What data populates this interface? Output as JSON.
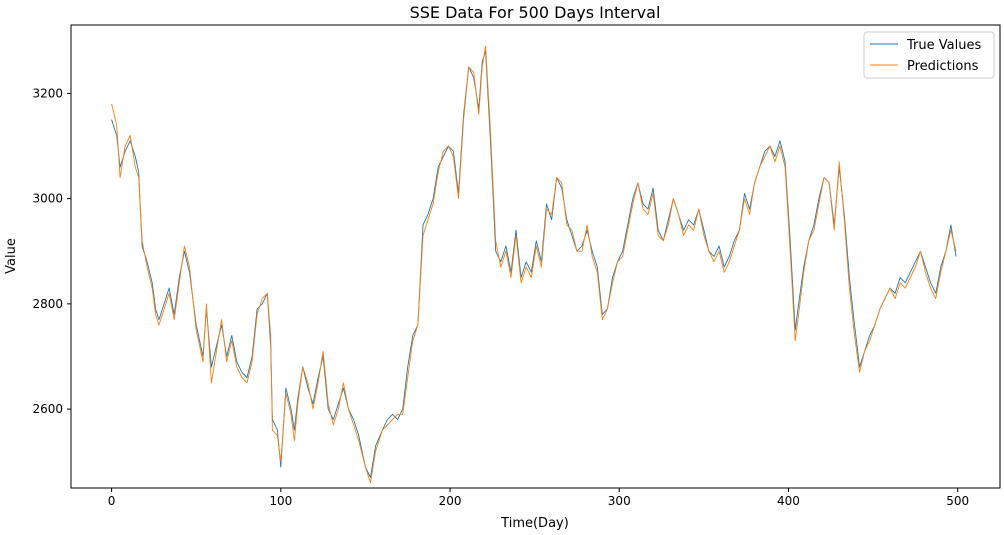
{
  "chart_data": {
    "type": "line",
    "title": "SSE Data For 500 Days Interval",
    "xlabel": "Time(Day)",
    "ylabel": "Value",
    "xlim": [
      -24,
      525
    ],
    "ylim": [
      2450,
      3330
    ],
    "xticks": [
      0,
      100,
      200,
      300,
      400,
      500
    ],
    "yticks": [
      2600,
      2800,
      3000,
      3200
    ],
    "grid": false,
    "legend_position": "top-right",
    "series": [
      {
        "name": "True Values",
        "color": "#1f77b4",
        "x": [
          0,
          3,
          5,
          8,
          11,
          14,
          16,
          18,
          21,
          24,
          26,
          28,
          31,
          34,
          37,
          40,
          43,
          46,
          50,
          54,
          56,
          59,
          62,
          65,
          68,
          71,
          74,
          77,
          80,
          83,
          86,
          89,
          92,
          94,
          95,
          98,
          100,
          103,
          106,
          108,
          110,
          113,
          116,
          119,
          122,
          125,
          128,
          131,
          134,
          137,
          140,
          143,
          146,
          150,
          153,
          156,
          160,
          163,
          166,
          169,
          172,
          175,
          178,
          181,
          184,
          187,
          190,
          193,
          196,
          199,
          202,
          205,
          208,
          211,
          214,
          217,
          219,
          221,
          224,
          227,
          230,
          233,
          236,
          239,
          242,
          245,
          248,
          251,
          254,
          257,
          260,
          263,
          266,
          269,
          272,
          275,
          278,
          281,
          284,
          287,
          290,
          293,
          296,
          299,
          302,
          305,
          308,
          311,
          314,
          317,
          320,
          323,
          326,
          329,
          332,
          335,
          338,
          341,
          344,
          347,
          350,
          353,
          356,
          359,
          362,
          365,
          368,
          371,
          374,
          377,
          380,
          383,
          386,
          389,
          392,
          395,
          398,
          401,
          404,
          406,
          409,
          412,
          415,
          418,
          421,
          424,
          427,
          430,
          433,
          436,
          439,
          442,
          445,
          448,
          451,
          454,
          457,
          460,
          463,
          466,
          469,
          472,
          475,
          478,
          481,
          484,
          487,
          490,
          493,
          496,
          499
        ],
        "values": [
          3150,
          3120,
          3060,
          3090,
          3110,
          3080,
          3050,
          2910,
          2880,
          2840,
          2790,
          2770,
          2800,
          2830,
          2780,
          2850,
          2900,
          2860,
          2760,
          2700,
          2790,
          2680,
          2720,
          2760,
          2700,
          2740,
          2690,
          2670,
          2660,
          2700,
          2790,
          2800,
          2820,
          2720,
          2580,
          2560,
          2490,
          2640,
          2600,
          2560,
          2620,
          2680,
          2640,
          2610,
          2660,
          2700,
          2600,
          2580,
          2610,
          2640,
          2600,
          2580,
          2550,
          2490,
          2470,
          2530,
          2560,
          2580,
          2590,
          2580,
          2600,
          2680,
          2740,
          2760,
          2950,
          2970,
          3000,
          3060,
          3080,
          3100,
          3090,
          3010,
          3160,
          3250,
          3230,
          3170,
          3260,
          3280,
          3100,
          2900,
          2880,
          2910,
          2860,
          2940,
          2850,
          2880,
          2860,
          2920,
          2880,
          2990,
          2960,
          3040,
          3020,
          2960,
          2930,
          2900,
          2910,
          2940,
          2900,
          2870,
          2780,
          2790,
          2850,
          2880,
          2900,
          2950,
          3000,
          3030,
          2990,
          2980,
          3020,
          2940,
          2920,
          2960,
          3000,
          2970,
          2940,
          2960,
          2950,
          2980,
          2940,
          2900,
          2890,
          2910,
          2870,
          2890,
          2920,
          2940,
          3010,
          2980,
          3030,
          3060,
          3090,
          3100,
          3080,
          3110,
          3070,
          2920,
          2750,
          2800,
          2870,
          2920,
          2950,
          3000,
          3040,
          3030,
          2950,
          3060,
          2970,
          2850,
          2760,
          2680,
          2710,
          2740,
          2760,
          2790,
          2810,
          2830,
          2820,
          2850,
          2840,
          2860,
          2880,
          2900,
          2870,
          2840,
          2820,
          2870,
          2900,
          2950,
          2890
        ]
      },
      {
        "name": "Predictions",
        "color": "#ff7f0e",
        "x": [
          0,
          3,
          5,
          8,
          11,
          14,
          16,
          18,
          21,
          24,
          26,
          28,
          31,
          34,
          37,
          40,
          43,
          46,
          50,
          54,
          56,
          59,
          62,
          65,
          68,
          71,
          74,
          77,
          80,
          83,
          86,
          89,
          92,
          94,
          95,
          98,
          100,
          103,
          106,
          108,
          110,
          113,
          116,
          119,
          122,
          125,
          128,
          131,
          134,
          137,
          140,
          143,
          146,
          150,
          153,
          156,
          160,
          163,
          166,
          169,
          172,
          175,
          178,
          181,
          184,
          187,
          190,
          193,
          196,
          199,
          202,
          205,
          208,
          211,
          214,
          217,
          219,
          221,
          224,
          227,
          230,
          233,
          236,
          239,
          242,
          245,
          248,
          251,
          254,
          257,
          260,
          263,
          266,
          269,
          272,
          275,
          278,
          281,
          284,
          287,
          290,
          293,
          296,
          299,
          302,
          305,
          308,
          311,
          314,
          317,
          320,
          323,
          326,
          329,
          332,
          335,
          338,
          341,
          344,
          347,
          350,
          353,
          356,
          359,
          362,
          365,
          368,
          371,
          374,
          377,
          380,
          383,
          386,
          389,
          392,
          395,
          398,
          401,
          404,
          406,
          409,
          412,
          415,
          418,
          421,
          424,
          427,
          430,
          433,
          436,
          439,
          442,
          445,
          448,
          451,
          454,
          457,
          460,
          463,
          466,
          469,
          472,
          475,
          478,
          481,
          484,
          487,
          490,
          493,
          496,
          499
        ],
        "values": [
          3180,
          3140,
          3040,
          3100,
          3120,
          3060,
          3040,
          2920,
          2870,
          2830,
          2780,
          2760,
          2790,
          2820,
          2770,
          2840,
          2910,
          2870,
          2750,
          2690,
          2800,
          2650,
          2710,
          2770,
          2690,
          2730,
          2680,
          2660,
          2650,
          2690,
          2780,
          2810,
          2820,
          2740,
          2560,
          2550,
          2500,
          2630,
          2590,
          2540,
          2610,
          2680,
          2650,
          2600,
          2650,
          2710,
          2610,
          2570,
          2600,
          2650,
          2600,
          2570,
          2540,
          2490,
          2460,
          2520,
          2560,
          2570,
          2580,
          2590,
          2590,
          2660,
          2730,
          2760,
          2930,
          2960,
          2990,
          3050,
          3090,
          3100,
          3080,
          3000,
          3150,
          3250,
          3240,
          3160,
          3250,
          3290,
          3120,
          2920,
          2870,
          2900,
          2850,
          2930,
          2840,
          2870,
          2850,
          2910,
          2870,
          2980,
          2970,
          3040,
          3030,
          2950,
          2940,
          2900,
          2900,
          2950,
          2890,
          2860,
          2770,
          2790,
          2840,
          2880,
          2890,
          2940,
          2990,
          3030,
          2980,
          2970,
          3010,
          2930,
          2920,
          2950,
          3000,
          2970,
          2930,
          2950,
          2940,
          2980,
          2930,
          2900,
          2880,
          2900,
          2860,
          2880,
          2910,
          2940,
          3000,
          2970,
          3030,
          3060,
          3080,
          3100,
          3070,
          3100,
          3060,
          2900,
          2730,
          2780,
          2860,
          2920,
          2940,
          2990,
          3040,
          3030,
          2940,
          3070,
          2960,
          2830,
          2740,
          2670,
          2710,
          2730,
          2760,
          2790,
          2810,
          2830,
          2810,
          2840,
          2830,
          2850,
          2870,
          2900,
          2860,
          2830,
          2810,
          2860,
          2900,
          2940,
          2900
        ]
      }
    ]
  }
}
